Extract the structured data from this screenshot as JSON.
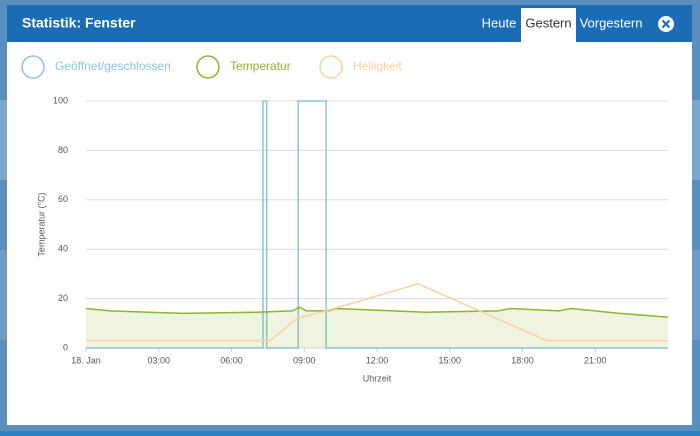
{
  "header": {
    "title": "Statistik: Fenster",
    "tabs": [
      "Heute",
      "Gestern",
      "Vorgestern"
    ],
    "active_tab": 1
  },
  "chart_data": {
    "type": "line",
    "xlabel": "Uhrzeit",
    "ylabel": "Temperatur (°C)",
    "xlim": [
      0,
      24
    ],
    "ylim": [
      0,
      100
    ],
    "xticks": [
      {
        "value": 0,
        "label": "18. Jan"
      },
      {
        "value": 3,
        "label": "03:00"
      },
      {
        "value": 6,
        "label": "06:00"
      },
      {
        "value": 9,
        "label": "09:00"
      },
      {
        "value": 12,
        "label": "12:00"
      },
      {
        "value": 15,
        "label": "15:00"
      },
      {
        "value": 18,
        "label": "18:00"
      },
      {
        "value": 21,
        "label": "21:00"
      }
    ],
    "yticks": [
      0,
      20,
      40,
      60,
      80,
      100
    ],
    "grid": true,
    "series": [
      {
        "name": "Geöffnet/geschlossen",
        "color": "#8cc3de",
        "fill": false,
        "x": [
          0,
          7.3,
          7.3,
          7.45,
          7.45,
          8.75,
          8.75,
          9.9,
          9.9,
          24
        ],
        "values": [
          0,
          0,
          100,
          100,
          0,
          0,
          100,
          100,
          0,
          0
        ]
      },
      {
        "name": "Temperatur",
        "color": "#8db52a",
        "fill": true,
        "x": [
          0,
          1,
          4,
          7,
          8.5,
          8.8,
          9.1,
          10,
          10.3,
          14,
          17,
          17.5,
          19.5,
          20,
          22,
          24
        ],
        "values": [
          16,
          15,
          14,
          14.5,
          15,
          16.5,
          15,
          15,
          16,
          14.5,
          15,
          16,
          15,
          16,
          14,
          12.5
        ]
      },
      {
        "name": "Helligkeit",
        "color": "#f7d2a0",
        "fill": false,
        "x": [
          0,
          7.6,
          8.7,
          9.9,
          13.7,
          19,
          24
        ],
        "values": [
          3,
          3,
          12,
          15,
          26,
          3,
          3
        ]
      }
    ]
  }
}
